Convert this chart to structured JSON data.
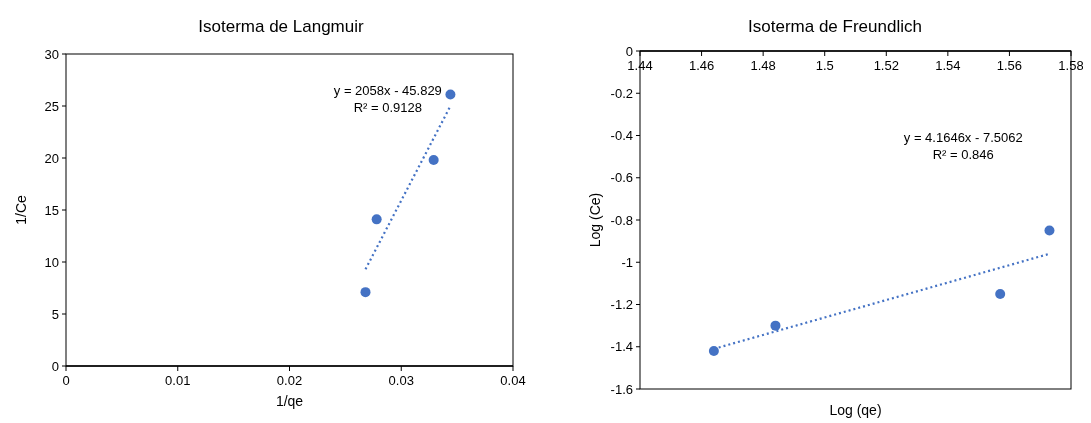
{
  "chart_data": [
    {
      "type": "scatter",
      "title": "Isoterma de Langmuir",
      "xlabel": "1/qe",
      "ylabel": "1/Ce",
      "xlim": [
        0,
        0.04
      ],
      "xticks": [
        0,
        0.01,
        0.02,
        0.03,
        0.04
      ],
      "ylim": [
        0,
        30
      ],
      "yticks": [
        0,
        5,
        10,
        15,
        20,
        25,
        30
      ],
      "marker": "circle",
      "grid": false,
      "annotations": [
        "y = 2058x - 45.829",
        "R² = 0.9128"
      ],
      "series": [
        {
          "color": "#4472c4",
          "x": [
            0.0268,
            0.0278,
            0.0329,
            0.0344
          ],
          "values": [
            7.1,
            14.1,
            19.8,
            26.1
          ]
        },
        {
          "type": "line",
          "color": "#4472c4",
          "line_style": "dotted",
          "marker": "none",
          "x": [
            0.0268,
            0.0344
          ],
          "values": [
            9.3,
            25.0
          ]
        }
      ]
    },
    {
      "type": "scatter",
      "title": "Isoterma de Freundlich",
      "xlabel": "Log (qe)",
      "ylabel": "Log (Ce)",
      "xlim": [
        1.44,
        1.58
      ],
      "xticks": [
        1.44,
        1.46,
        1.48,
        1.5,
        1.52,
        1.54,
        1.56,
        1.58
      ],
      "ylim": [
        -1.6,
        0
      ],
      "yticks": [
        -1.6,
        -1.4,
        -1.2,
        -1,
        -0.8,
        -0.6,
        -0.4,
        -0.2,
        0
      ],
      "marker": "circle",
      "grid": false,
      "annotations": [
        "y = 4.1646x - 7.5062",
        "R² = 0.846"
      ],
      "series": [
        {
          "color": "#4472c4",
          "x": [
            1.464,
            1.484,
            1.557,
            1.573
          ],
          "values": [
            -1.42,
            -1.3,
            -1.15,
            -0.85
          ]
        },
        {
          "type": "line",
          "color": "#4472c4",
          "line_style": "dotted",
          "marker": "none",
          "x": [
            1.464,
            1.573
          ],
          "values": [
            -1.41,
            -0.96
          ]
        }
      ]
    }
  ]
}
